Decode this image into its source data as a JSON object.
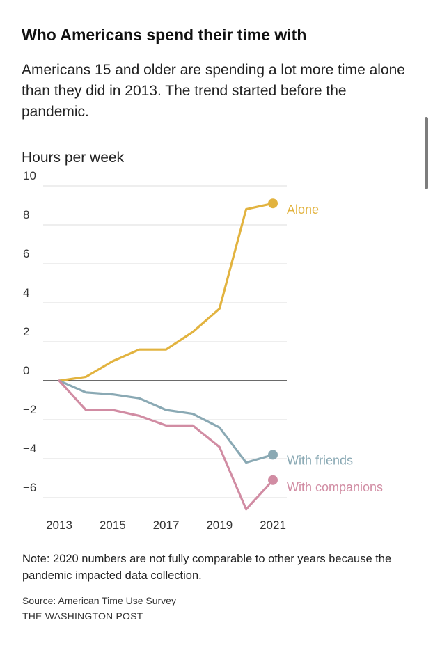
{
  "header": {
    "title": "Who Americans spend their time with",
    "subtitle": "Americans 15 and older are spending a lot more time alone than they did in 2013. The trend started before the pandemic."
  },
  "chart_data": {
    "type": "line",
    "title": "Who Americans spend their time with",
    "ylabel": "Hours per week",
    "xlabel": "",
    "x": [
      2013,
      2014,
      2015,
      2016,
      2017,
      2018,
      2019,
      2020,
      2021
    ],
    "x_tick_labels": [
      "2013",
      "2015",
      "2017",
      "2019",
      "2021"
    ],
    "y_ticks": [
      10,
      8,
      6,
      4,
      2,
      0,
      -2,
      -4,
      -6
    ],
    "y_tick_labels": [
      "10",
      "8",
      "6",
      "4",
      "2",
      "0",
      "−2",
      "−4",
      "−6"
    ],
    "ylim": [
      -7,
      10
    ],
    "xlim": [
      2013,
      2021
    ],
    "grid": true,
    "series": [
      {
        "name": "Alone",
        "color": "#e2b33f",
        "values": [
          0,
          0.2,
          1.0,
          1.6,
          1.6,
          2.5,
          3.7,
          8.8,
          9.1
        ]
      },
      {
        "name": "With friends",
        "color": "#8aa9b4",
        "values": [
          0,
          -0.6,
          -0.7,
          -0.9,
          -1.5,
          -1.7,
          -2.4,
          -4.2,
          -3.8
        ]
      },
      {
        "name": "With companions",
        "color": "#d18ca3",
        "values": [
          0,
          -1.5,
          -1.5,
          -1.8,
          -2.3,
          -2.3,
          -3.4,
          -6.6,
          -5.1
        ]
      }
    ]
  },
  "footer": {
    "note": "Note: 2020 numbers are not fully comparable to other years because the pandemic impacted data collection.",
    "source": "Source: American Time Use Survey",
    "publisher": "THE WASHINGTON POST"
  },
  "colors": {
    "gridline": "#dddddd",
    "zeroline": "#111111",
    "tick_text": "#333333",
    "scrollbar": "#7d7d7d"
  }
}
